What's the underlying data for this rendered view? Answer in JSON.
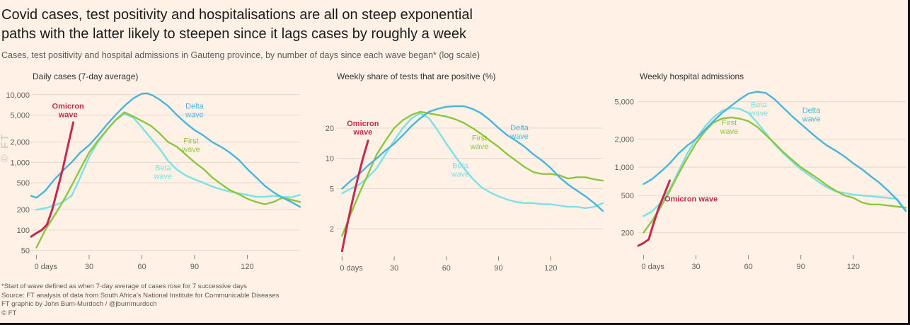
{
  "title_line1": "Covid cases, test positivity and hospitalisations are all on steep exponential",
  "title_line2": "paths with the latter likely to steepen since it lags cases by roughly a week",
  "subtitle": "Cases, test positivity and hospital admissions in Gauteng province, by number of days since each wave began* (log scale)",
  "footnote": "*Start of wave defined as when 7-day average of cases rose for 7 successive days",
  "source": "Source: FT analysis of data from South Africa's National Institute for Communicable Diseases",
  "credit": "FT graphic by John Burn-Murdoch / @jburnmurdoch",
  "copyright": "© FT",
  "watermark": "© FT",
  "colors": {
    "omicron": "#c4294f",
    "delta": "#4bb4dc",
    "first": "#8cc63f",
    "beta": "#7ee0e6",
    "grid": "#e3d9ce"
  },
  "chart_data": [
    {
      "type": "line",
      "title": "Daily cases (7-day average)",
      "log_scale": true,
      "xlim": [
        -3,
        150
      ],
      "ylim": [
        45,
        11500
      ],
      "xticks": [
        0,
        30,
        60,
        90,
        120
      ],
      "xtick_labels": [
        "0 days",
        "30",
        "60",
        "90",
        "120"
      ],
      "yticks": [
        50,
        100,
        200,
        500,
        1000,
        2000,
        5000,
        10000
      ],
      "ytick_labels": [
        "50",
        "100",
        "200",
        "500",
        "1,000",
        "2,000",
        "5,000",
        "10,000"
      ],
      "annotations": [
        {
          "text": [
            "Omicron",
            "wave"
          ],
          "series": "Omicron",
          "x": 18,
          "y": 6200
        },
        {
          "text": [
            "Delta",
            "wave"
          ],
          "series": "Delta",
          "x": 90,
          "y": 6200
        },
        {
          "text": [
            "First",
            "wave"
          ],
          "series": "First",
          "x": 88,
          "y": 1900
        },
        {
          "text": [
            "Beta",
            "wave"
          ],
          "series": "Beta",
          "x": 72,
          "y": 760
        }
      ],
      "series": [
        {
          "name": "Omicron",
          "x": [
            -3,
            0,
            3,
            6,
            9,
            12,
            15,
            18,
            21
          ],
          "y": [
            80,
            90,
            100,
            120,
            200,
            400,
            800,
            1800,
            3900
          ]
        },
        {
          "name": "Delta",
          "x": [
            -3,
            0,
            5,
            10,
            15,
            20,
            25,
            30,
            35,
            40,
            45,
            50,
            55,
            60,
            63,
            66,
            70,
            75,
            80,
            85,
            90,
            95,
            100,
            105,
            110,
            115,
            120,
            125,
            130,
            135,
            140,
            145,
            150
          ],
          "y": [
            320,
            300,
            380,
            550,
            750,
            1000,
            1400,
            1800,
            2500,
            3600,
            5000,
            6800,
            8800,
            10400,
            10500,
            9800,
            8500,
            6800,
            5000,
            3800,
            3000,
            2500,
            2000,
            1700,
            1400,
            1100,
            800,
            600,
            450,
            360,
            300,
            260,
            220
          ]
        },
        {
          "name": "First",
          "x": [
            0,
            5,
            10,
            15,
            20,
            25,
            30,
            35,
            40,
            45,
            50,
            55,
            60,
            65,
            70,
            75,
            80,
            85,
            90,
            95,
            100,
            105,
            110,
            115,
            120,
            125,
            130,
            135,
            140,
            145,
            150
          ],
          "y": [
            55,
            100,
            160,
            260,
            450,
            800,
            1400,
            2100,
            3000,
            4200,
            5500,
            4800,
            4100,
            3500,
            2700,
            2000,
            1700,
            1300,
            1000,
            800,
            600,
            480,
            390,
            340,
            290,
            260,
            240,
            260,
            300,
            280,
            260
          ]
        },
        {
          "name": "Beta",
          "x": [
            0,
            5,
            10,
            15,
            20,
            25,
            30,
            35,
            40,
            45,
            50,
            55,
            60,
            65,
            70,
            75,
            80,
            85,
            90,
            95,
            100,
            105,
            110,
            115,
            120,
            125,
            130,
            135,
            140,
            145,
            150
          ],
          "y": [
            200,
            210,
            230,
            260,
            320,
            600,
            1200,
            2000,
            3000,
            4200,
            5200,
            4600,
            3300,
            2300,
            1600,
            1050,
            780,
            640,
            560,
            500,
            440,
            400,
            370,
            350,
            330,
            310,
            310,
            320,
            310,
            305,
            330
          ]
        }
      ]
    },
    {
      "type": "line",
      "title": "Weekly share of tests that are positive (%)",
      "log_scale": true,
      "xlim": [
        -3,
        150
      ],
      "ylim": [
        1.1,
        40
      ],
      "xticks": [
        0,
        30,
        60,
        90,
        120
      ],
      "xtick_labels": [
        "0 days",
        "30",
        "60",
        "90",
        "120"
      ],
      "yticks": [
        2,
        5,
        10,
        20
      ],
      "ytick_labels": [
        "2",
        "5",
        "10",
        "20"
      ],
      "annotations": [
        {
          "text": [
            "Omicron",
            "wave"
          ],
          "series": "Omicron",
          "x": 12,
          "y": 21
        },
        {
          "text": [
            "Delta",
            "wave"
          ],
          "series": "Delta",
          "x": 102,
          "y": 19
        },
        {
          "text": [
            "First",
            "wave"
          ],
          "series": "First",
          "x": 79,
          "y": 15
        },
        {
          "text": [
            "Beta",
            "wave"
          ],
          "series": "Beta",
          "x": 68,
          "y": 8
        }
      ],
      "series": [
        {
          "name": "Omicron",
          "x": [
            0,
            3,
            6,
            9,
            12,
            15
          ],
          "y": [
            1.2,
            2.2,
            3.8,
            6.3,
            10,
            15
          ]
        },
        {
          "name": "Delta",
          "x": [
            0,
            5,
            10,
            15,
            20,
            25,
            30,
            35,
            40,
            45,
            50,
            55,
            60,
            65,
            70,
            75,
            80,
            85,
            90,
            95,
            100,
            105,
            110,
            115,
            120,
            125,
            130,
            135,
            140,
            145,
            150
          ],
          "y": [
            5,
            6,
            7,
            8.5,
            10,
            12,
            14,
            17,
            21,
            25,
            29,
            31,
            32.5,
            33,
            33,
            31,
            28,
            24,
            20,
            17,
            15,
            13,
            11,
            9.5,
            8,
            6.5,
            5.5,
            4.8,
            4.2,
            3.6,
            3
          ]
        },
        {
          "name": "First",
          "x": [
            0,
            5,
            10,
            15,
            20,
            25,
            30,
            35,
            40,
            45,
            50,
            55,
            60,
            65,
            70,
            75,
            80,
            85,
            90,
            95,
            100,
            105,
            110,
            115,
            120,
            125,
            130,
            135,
            140,
            145,
            150
          ],
          "y": [
            1.7,
            2.8,
            4.5,
            7,
            11,
            15,
            20,
            24,
            27,
            29,
            28,
            27,
            26,
            24.5,
            22.5,
            20,
            17.5,
            15,
            13,
            11,
            9.5,
            8.2,
            7.3,
            7,
            7,
            6.8,
            6.3,
            6.5,
            6.5,
            6.2,
            6
          ]
        },
        {
          "name": "Beta",
          "x": [
            0,
            5,
            10,
            15,
            20,
            25,
            30,
            35,
            40,
            45,
            50,
            55,
            60,
            65,
            70,
            75,
            80,
            85,
            90,
            95,
            100,
            105,
            110,
            115,
            120,
            125,
            130,
            135,
            140,
            145,
            150
          ],
          "y": [
            4.5,
            5,
            5.5,
            6.5,
            8,
            11,
            15,
            20,
            25,
            28,
            25,
            19,
            14,
            10.5,
            8,
            6.3,
            5.2,
            4.6,
            4.2,
            3.9,
            3.7,
            3.6,
            3.6,
            3.5,
            3.5,
            3.4,
            3.3,
            3.3,
            3.2,
            3.3,
            3.6
          ]
        }
      ]
    },
    {
      "type": "line",
      "title": "Weekly hospital admissions",
      "log_scale": true,
      "xlim": [
        -3,
        150
      ],
      "ylim": [
        120,
        6800
      ],
      "xticks": [
        0,
        30,
        60,
        90,
        120
      ],
      "xtick_labels": [
        "0 days",
        "30",
        "60",
        "90",
        "120"
      ],
      "yticks": [
        200,
        500,
        1000,
        2000,
        5000
      ],
      "ytick_labels": [
        "200",
        "500",
        "1,000",
        "2,000",
        "5,000"
      ],
      "annotations": [
        {
          "text": [
            "Omicron wave"
          ],
          "series": "Omicron",
          "x": 12,
          "y": 430
        },
        {
          "text": [
            "Delta",
            "wave"
          ],
          "series": "Delta",
          "x": 96,
          "y": 3800
        },
        {
          "text": [
            "First",
            "wave"
          ],
          "series": "First",
          "x": 49,
          "y": 2800
        },
        {
          "text": [
            "Beta",
            "wave"
          ],
          "series": "Beta",
          "x": 66,
          "y": 4350
        }
      ],
      "series": [
        {
          "name": "Omicron",
          "x": [
            -3,
            0,
            3,
            6,
            9,
            12,
            15
          ],
          "y": [
            145,
            155,
            170,
            260,
            380,
            520,
            720
          ]
        },
        {
          "name": "Delta",
          "x": [
            0,
            5,
            10,
            15,
            20,
            25,
            30,
            35,
            40,
            45,
            50,
            55,
            60,
            65,
            70,
            75,
            80,
            85,
            90,
            95,
            100,
            105,
            110,
            115,
            120,
            125,
            130,
            135,
            140,
            145,
            150
          ],
          "y": [
            660,
            750,
            900,
            1100,
            1400,
            1700,
            2000,
            2500,
            3100,
            3800,
            4500,
            5300,
            6100,
            6400,
            6200,
            5300,
            4300,
            3500,
            2900,
            2400,
            2000,
            1700,
            1500,
            1300,
            1100,
            950,
            800,
            680,
            560,
            450,
            340
          ]
        },
        {
          "name": "First",
          "x": [
            0,
            5,
            10,
            15,
            20,
            25,
            30,
            35,
            40,
            45,
            50,
            55,
            60,
            65,
            70,
            75,
            80,
            85,
            90,
            95,
            100,
            105,
            110,
            115,
            120,
            125,
            130,
            135,
            140,
            145,
            150
          ],
          "y": [
            200,
            270,
            380,
            560,
            850,
            1250,
            1800,
            2400,
            3000,
            3300,
            3400,
            3300,
            3100,
            2700,
            2200,
            1800,
            1450,
            1200,
            1000,
            870,
            750,
            640,
            560,
            500,
            470,
            420,
            400,
            400,
            390,
            380,
            370
          ]
        },
        {
          "name": "Beta",
          "x": [
            0,
            5,
            10,
            15,
            20,
            25,
            30,
            35,
            40,
            45,
            50,
            55,
            60,
            65,
            70,
            75,
            80,
            85,
            90,
            95,
            100,
            105,
            110,
            115,
            120,
            125,
            130,
            135,
            140,
            145,
            150
          ],
          "y": [
            300,
            340,
            420,
            580,
            900,
            1400,
            2000,
            2700,
            3400,
            4000,
            4300,
            4200,
            3800,
            3000,
            2300,
            1750,
            1400,
            1150,
            950,
            820,
            700,
            610,
            550,
            530,
            510,
            500,
            490,
            480,
            470,
            460,
            350
          ]
        }
      ]
    }
  ]
}
